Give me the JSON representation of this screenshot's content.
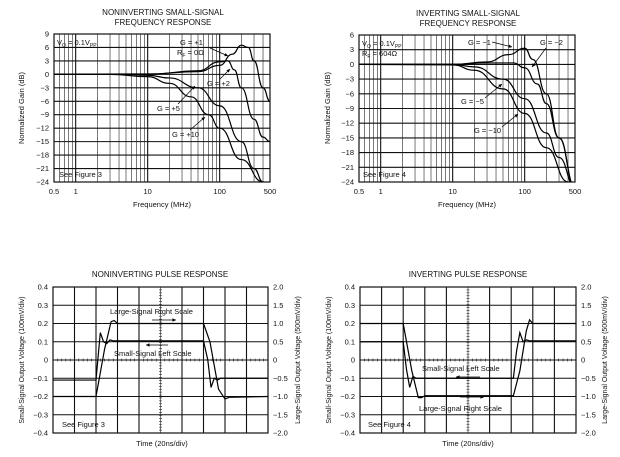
{
  "chart_data": [
    {
      "type": "line",
      "title": [
        "NONINVERTING SMALL-SIGNAL",
        "FREQUENCY RESPONSE"
      ],
      "xlabel": "Frequency (MHz)",
      "ylabel": "Normalized Gain (dB)",
      "xscale": "log",
      "xlim": [
        0.5,
        500
      ],
      "ylim": [
        -24,
        9
      ],
      "xticks": [
        "0.5",
        "1",
        "10",
        "100",
        "500"
      ],
      "yticks": [
        "9",
        "6",
        "3",
        "0",
        "−3",
        "−6",
        "−9",
        "−12",
        "−15",
        "−18",
        "−21",
        "−24"
      ],
      "grid": true,
      "annotations": {
        "vo": {
          "v": "V",
          "sub": "O",
          "rest": " = 0.1V",
          "sub2": "PP"
        },
        "rf": {
          "v": "R",
          "sub": "F",
          "rest": " = 0Ω"
        },
        "note": "See Figure 3"
      },
      "series": [
        {
          "name": "G = +1",
          "x": [
            0.5,
            10,
            50,
            100,
            150,
            200,
            250,
            300,
            400,
            500
          ],
          "y": [
            0,
            0.1,
            0.6,
            2,
            4.5,
            6.5,
            6,
            3,
            -3,
            -6
          ]
        },
        {
          "name": "G = +2",
          "x": [
            0.5,
            10,
            50,
            100,
            130,
            160,
            200,
            300,
            400,
            500
          ],
          "y": [
            0,
            0,
            0.8,
            2.8,
            3,
            1,
            -3,
            -10,
            -14,
            -15
          ]
        },
        {
          "name": "G = +5",
          "x": [
            0.5,
            5,
            10,
            20,
            50,
            100,
            200,
            300,
            400,
            500
          ],
          "y": [
            0,
            0,
            -0.2,
            -0.8,
            -3,
            -7,
            -15,
            -21,
            -24,
            -25
          ]
        },
        {
          "name": "G = +10",
          "x": [
            0.5,
            3,
            10,
            20,
            40,
            70,
            100,
            200,
            400,
            500
          ],
          "y": [
            0,
            0,
            -0.5,
            -2,
            -5,
            -9,
            -12,
            -19,
            -24,
            -25
          ]
        }
      ]
    },
    {
      "type": "line",
      "title": [
        "INVERTING SMALL-SIGNAL",
        "FREQUENCY RESPONSE"
      ],
      "xlabel": "Frequency (MHz)",
      "ylabel": "Normalized Gain (dB)",
      "xscale": "log",
      "xlim": [
        0.5,
        500
      ],
      "ylim": [
        -24,
        6
      ],
      "xticks": [
        "0.5",
        "1",
        "10",
        "100",
        "500"
      ],
      "yticks": [
        "6",
        "3",
        "0",
        "−3",
        "−6",
        "−9",
        "−12",
        "−15",
        "−18",
        "−21",
        "−24"
      ],
      "grid": true,
      "annotations": {
        "vo": {
          "v": "V",
          "sub": "O",
          "rest": " = 0.1V",
          "sub2": "PP"
        },
        "rf": {
          "v": "R",
          "sub": "F",
          "rest": " = 604Ω"
        },
        "note": "See Figure 4"
      },
      "series": [
        {
          "name": "G = −1",
          "x": [
            0.5,
            10,
            30,
            60,
            100,
            130,
            200,
            300,
            500
          ],
          "y": [
            0,
            0,
            0.5,
            2,
            3.3,
            1,
            -6,
            -15,
            -25
          ]
        },
        {
          "name": "G = −2",
          "x": [
            0.5,
            10,
            30,
            70,
            100,
            150,
            200,
            300,
            500
          ],
          "y": [
            0,
            0,
            0.3,
            0.3,
            -0.7,
            -4,
            -8,
            -15,
            -25
          ]
        },
        {
          "name": "G = −5",
          "x": [
            0.5,
            10,
            20,
            50,
            100,
            200,
            300,
            500
          ],
          "y": [
            0,
            0,
            -0.5,
            -3,
            -7,
            -14,
            -19,
            -25
          ]
        },
        {
          "name": "G = −10",
          "x": [
            0.5,
            10,
            20,
            50,
            100,
            200,
            400
          ],
          "y": [
            0,
            -0.1,
            -1.2,
            -5,
            -10,
            -17,
            -24
          ]
        }
      ]
    },
    {
      "type": "line",
      "title": [
        "NONINVERTING PULSE RESPONSE"
      ],
      "xlabel": "Time (20ns/div)",
      "ylabel": "Small-Signal Output Voltage (100mV/div)",
      "ylabel_right": "Large-Signal Output Voltage (500mV/div)",
      "xlim": [
        0,
        10
      ],
      "ylim": [
        -0.4,
        0.4
      ],
      "ylim_right": [
        -2.0,
        2.0
      ],
      "yticks": [
        "0.4",
        "0.3",
        "0.2",
        "0.1",
        "0",
        "−0.1",
        "−0.2",
        "−0.3",
        "−0.4"
      ],
      "yticks_right": [
        "2.0",
        "1.5",
        "1.0",
        "0.5",
        "0",
        "−0.5",
        "−1.0",
        "−1.5",
        "−2.0"
      ],
      "grid": true,
      "annotations": {
        "large": "Large-Signal Right Scale",
        "small": "Small-Signal Left Scale",
        "note": "See Figure 3"
      },
      "series": [
        {
          "name": "Small-Signal",
          "axis": "left",
          "x": [
            0,
            2.0,
            2.2,
            2.35,
            2.5,
            2.65,
            2.8,
            7.0,
            7.2,
            7.35,
            7.5,
            7.65,
            7.8,
            10
          ],
          "y": [
            -0.11,
            -0.11,
            0.15,
            0.1,
            0.09,
            0.11,
            0.105,
            0.105,
            0.0,
            -0.15,
            -0.1,
            -0.11,
            -0.1,
            -0.1
          ]
        },
        {
          "name": "Large-Signal",
          "axis": "right",
          "x": [
            0,
            2.0,
            2.4,
            2.7,
            2.85,
            3.0,
            7.0,
            7.3,
            7.7,
            8.0,
            8.2,
            10
          ],
          "y": [
            -1.0,
            -1.0,
            0.3,
            1.05,
            1.08,
            1.0,
            1.0,
            0.5,
            -0.8,
            -1.07,
            -1.02,
            -1.0
          ]
        }
      ]
    },
    {
      "type": "line",
      "title": [
        "INVERTING PULSE RESPONSE"
      ],
      "xlabel": "Time (20ns/div)",
      "ylabel": "Small-Signal Output Voltage (100mV/div)",
      "ylabel_right": "Large-Signal Output Voltage (500mV/div)",
      "xlim": [
        0,
        10
      ],
      "ylim": [
        -0.4,
        0.4
      ],
      "ylim_right": [
        -2.0,
        2.0
      ],
      "yticks": [
        "0.4",
        "0.3",
        "0.2",
        "0.1",
        "0",
        "−0.1",
        "−0.2",
        "−0.3",
        "−0.4"
      ],
      "yticks_right": [
        "2.0",
        "1.5",
        "1.0",
        "0.5",
        "0",
        "−0.5",
        "−1.0",
        "−1.5",
        "−2.0"
      ],
      "grid": true,
      "annotations": {
        "large": "Large-Signal Right Scale",
        "small": "Small-Signal Left Scale",
        "note": "See Figure 4"
      },
      "series": [
        {
          "name": "Small-Signal",
          "axis": "left",
          "x": [
            0,
            2.0,
            2.15,
            2.3,
            2.45,
            2.6,
            7.1,
            7.25,
            7.4,
            7.55,
            7.7,
            7.85,
            10
          ],
          "y": [
            0.1,
            0.1,
            -0.05,
            -0.15,
            -0.09,
            -0.1,
            -0.1,
            0.05,
            0.15,
            0.1,
            0.11,
            0.105,
            0.105
          ]
        },
        {
          "name": "Large-Signal",
          "axis": "right",
          "x": [
            0,
            2.0,
            2.4,
            2.7,
            2.85,
            3.0,
            7.1,
            7.4,
            7.7,
            7.85,
            8.0,
            10
          ],
          "y": [
            1.0,
            1.0,
            -0.3,
            -1.03,
            -1.03,
            -0.98,
            -0.98,
            -0.3,
            0.8,
            1.1,
            1.0,
            1.0
          ]
        }
      ]
    }
  ]
}
